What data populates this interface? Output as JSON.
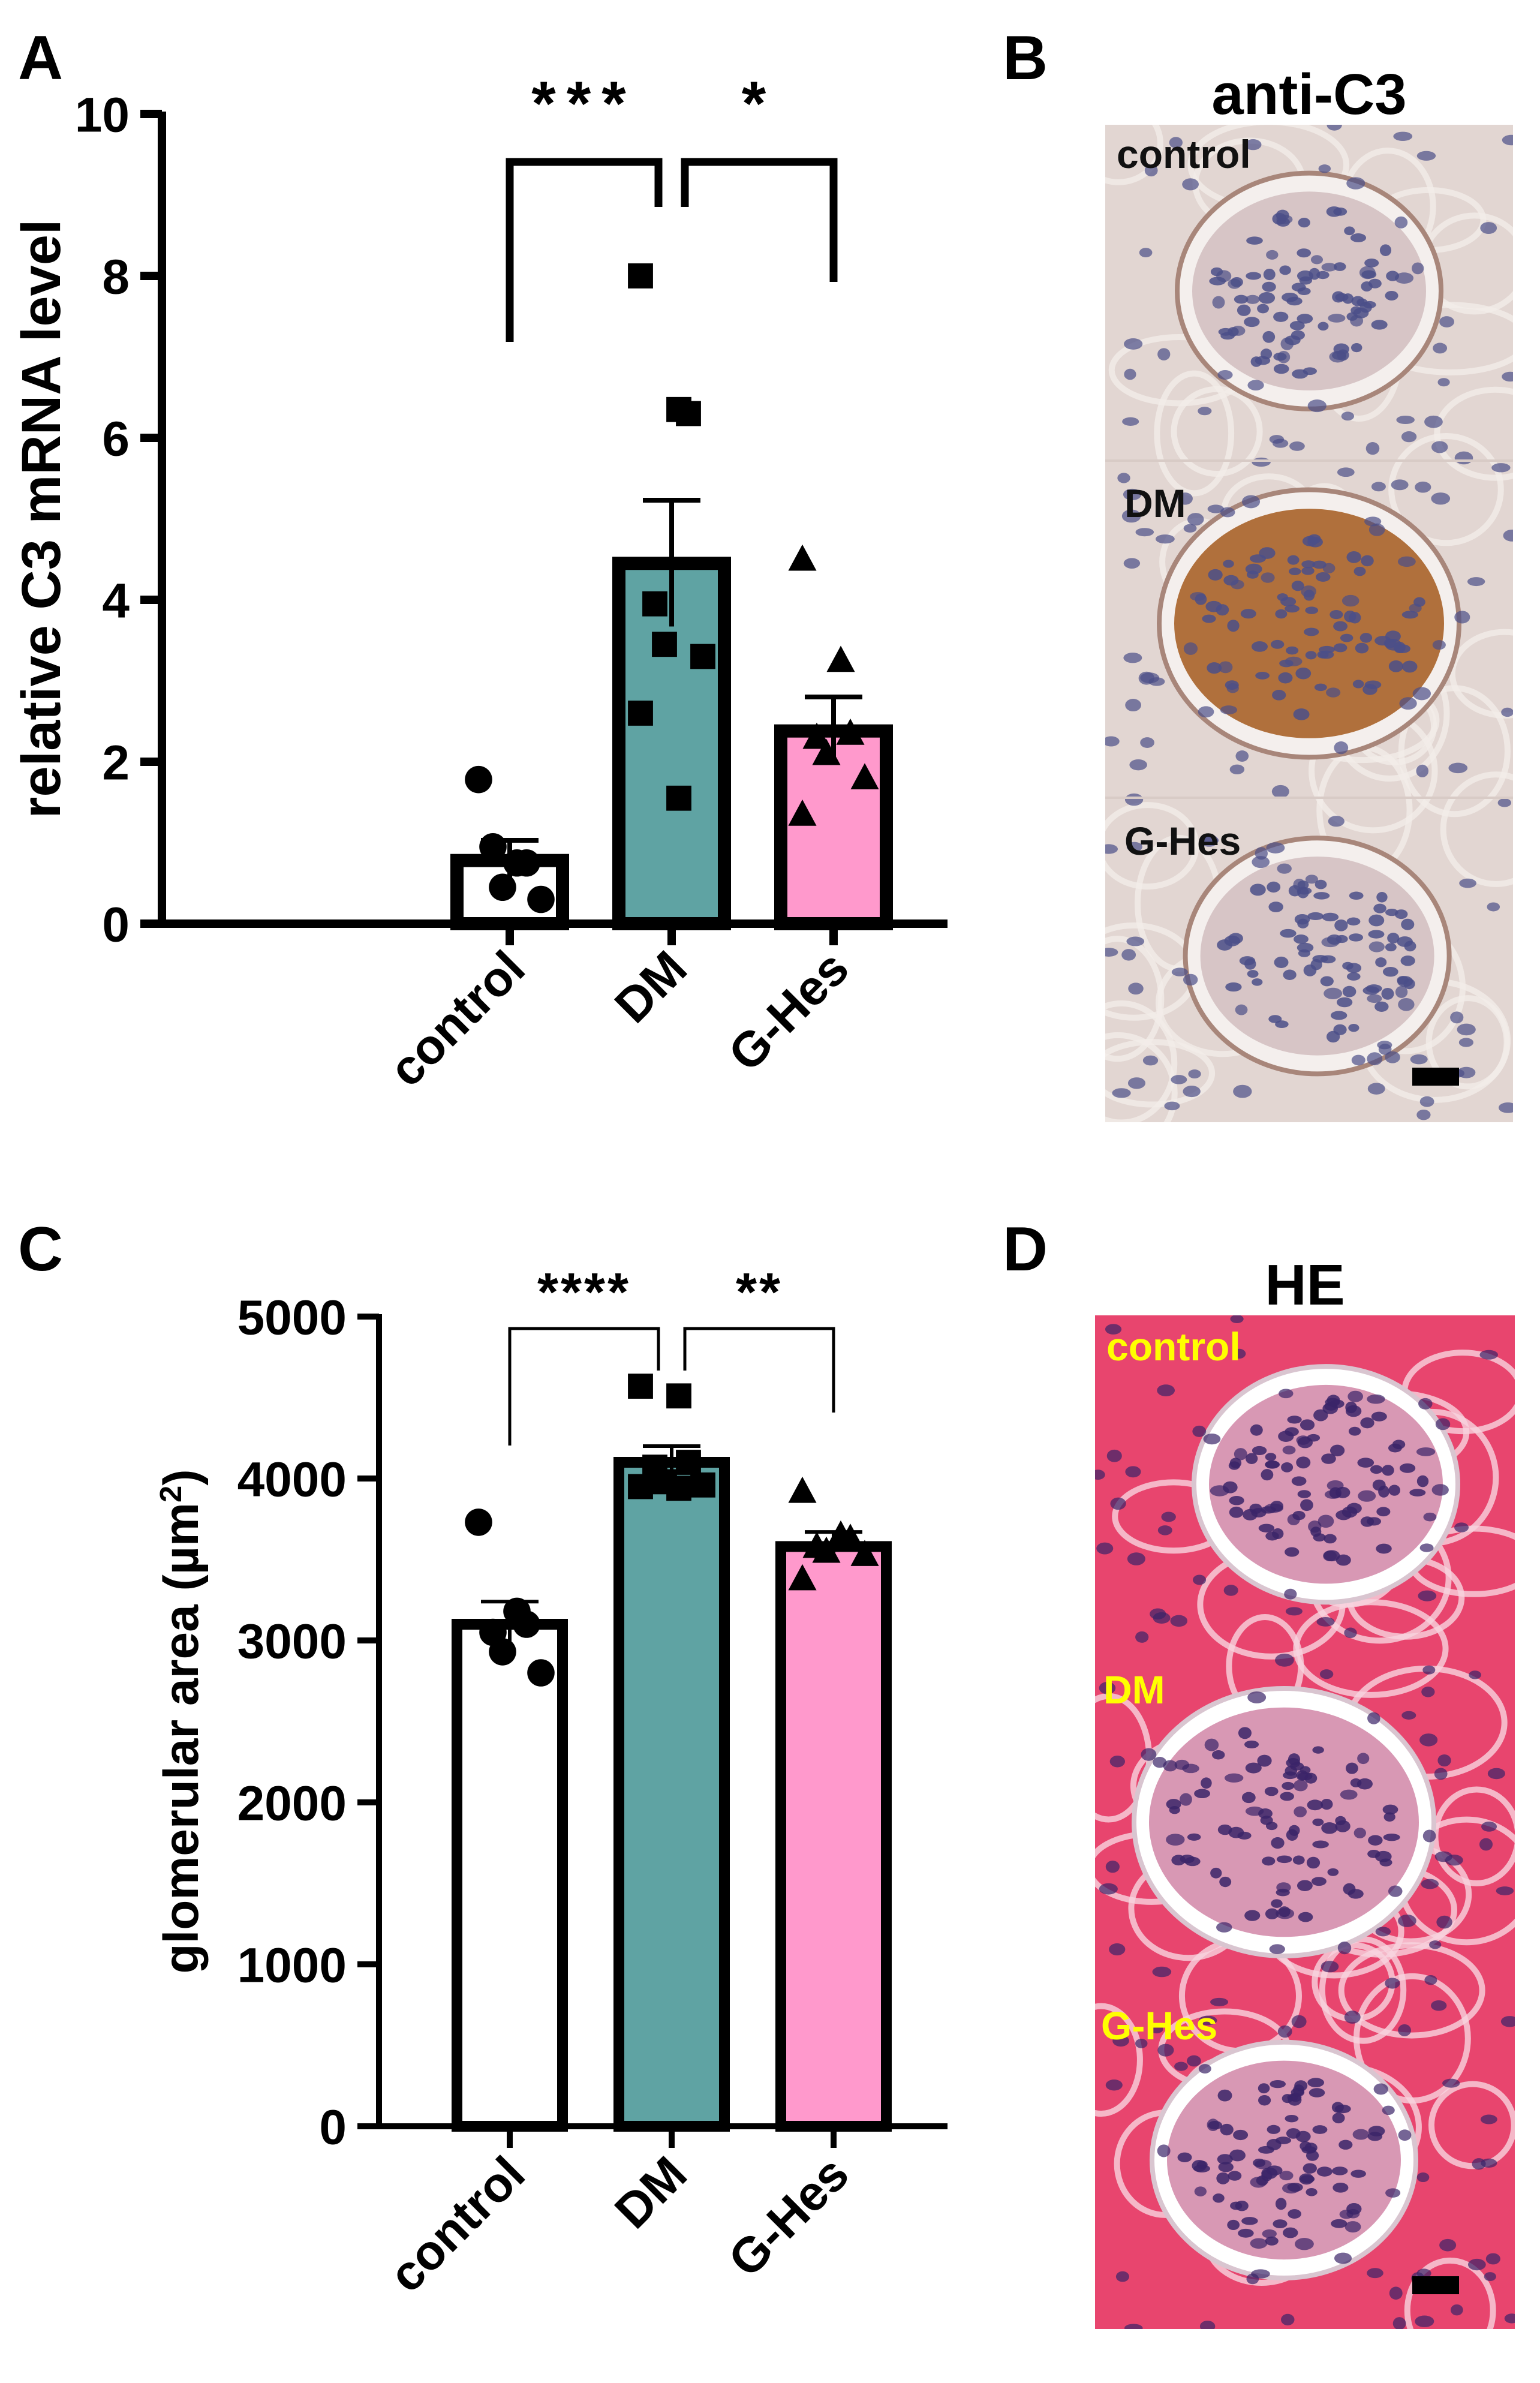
{
  "panels": {
    "A": "A",
    "B": "B",
    "C": "C",
    "D": "D"
  },
  "chart_data": [
    {
      "panel": "A",
      "type": "bar",
      "title": "",
      "xlabel": "",
      "ylabel": "relative C3 mRNA level",
      "ylim": [
        0,
        10
      ],
      "yticks": [
        "0",
        "2",
        "4",
        "6",
        "8",
        "10"
      ],
      "categories": [
        "control",
        "DM",
        "G-Hes"
      ],
      "values": [
        0.78,
        4.45,
        2.38
      ],
      "sem": [
        0.25,
        0.78,
        0.42
      ],
      "points": [
        [
          1.78,
          0.75,
          0.75,
          0.95,
          0.45,
          0.3
        ],
        [
          8.0,
          6.35,
          6.3,
          3.95,
          3.45,
          3.3,
          2.6,
          1.55
        ],
        [
          4.5,
          3.25,
          2.35,
          2.3,
          2.1,
          1.8,
          1.35
        ]
      ],
      "markers": [
        "circle",
        "square",
        "triangle"
      ],
      "colors": [
        "#ffffff",
        "#5fa3a3",
        "#ff99cc"
      ],
      "significance": [
        {
          "from": 0,
          "to": 1,
          "label": "***"
        },
        {
          "from": 1,
          "to": 2,
          "label": "*"
        }
      ],
      "grid": false
    },
    {
      "panel": "C",
      "type": "bar",
      "title": "",
      "xlabel": "",
      "ylabel": "glomerular area (µm",
      "ylabel_sup": "2",
      "ylabel_end": ")",
      "ylim": [
        0,
        5000
      ],
      "yticks": [
        "0",
        "1000",
        "2000",
        "3000",
        "4000",
        "5000"
      ],
      "categories": [
        "control",
        "DM",
        "G-Hes"
      ],
      "values": [
        3100,
        4100,
        3580
      ],
      "sem": [
        140,
        100,
        90
      ],
      "points": [
        [
          3730,
          3180,
          3100,
          3050,
          2930,
          2800
        ],
        [
          4570,
          4510,
          4100,
          4070,
          3980,
          3960,
          3950,
          3940
        ],
        [
          3920,
          3650,
          3630,
          3580,
          3550,
          3530,
          3380
        ]
      ],
      "markers": [
        "circle",
        "square",
        "triangle"
      ],
      "colors": [
        "#ffffff",
        "#5fa3a3",
        "#ff99cc"
      ],
      "significance": [
        {
          "from": 0,
          "to": 1,
          "label": "****"
        },
        {
          "from": 1,
          "to": 2,
          "label": "**"
        }
      ],
      "grid": false
    }
  ],
  "micrographs": {
    "B": {
      "title": "anti-C3",
      "labels": [
        "control",
        "DM",
        "G-Hes"
      ],
      "tissue_color": "#e2d6d2",
      "stain_color": "#a0602e",
      "nuclei_color": "#4b4f88"
    },
    "D": {
      "title": "HE",
      "labels": [
        "control",
        "DM",
        "G-Hes"
      ],
      "tissue_color": "#e8456e",
      "stain_color": "#ffffff",
      "nuclei_color": "#3b2468",
      "label_color": "#ffff00"
    }
  }
}
